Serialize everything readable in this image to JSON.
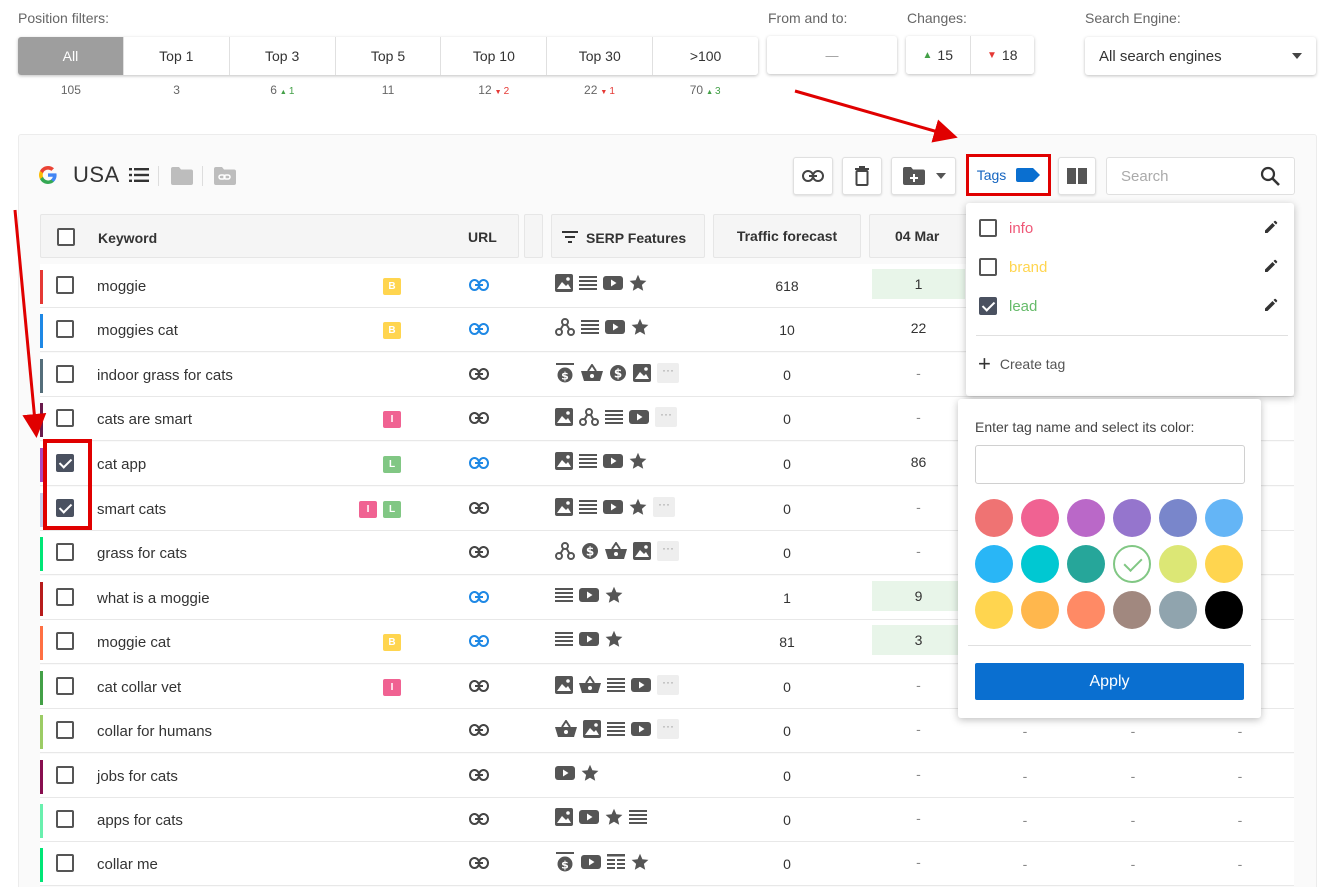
{
  "filters": {
    "position_label": "Position filters:",
    "segments": [
      {
        "label": "All",
        "count": "105",
        "delta": "",
        "dir": ""
      },
      {
        "label": "Top 1",
        "count": "3",
        "delta": "",
        "dir": ""
      },
      {
        "label": "Top 3",
        "count": "6",
        "delta": "1",
        "dir": "up"
      },
      {
        "label": "Top 5",
        "count": "11",
        "delta": "",
        "dir": ""
      },
      {
        "label": "Top 10",
        "count": "12",
        "delta": "2",
        "dir": "down"
      },
      {
        "label": "Top 30",
        "count": "22",
        "delta": "1",
        "dir": "down"
      },
      {
        "label": ">100",
        "count": "70",
        "delta": "3",
        "dir": "up"
      }
    ],
    "from_to_label": "From and to:",
    "from_to_value": "—",
    "changes_label": "Changes:",
    "changes_up": "15",
    "changes_down": "18",
    "engine_label": "Search Engine:",
    "engine_value": "All search engines"
  },
  "toolbar": {
    "country": "USA",
    "tags_label": "Tags",
    "search_placeholder": "Search"
  },
  "table": {
    "headers": {
      "keyword": "Keyword",
      "url": "URL",
      "serp": "SERP Features",
      "traffic": "Traffic forecast",
      "date": "04 Mar"
    },
    "rows": [
      {
        "keyword": "moggie",
        "bar": "#e53935",
        "checked": false,
        "badges": [
          "B"
        ],
        "url_blue": true,
        "serp": [
          "image",
          "list",
          "video",
          "star"
        ],
        "traffic": "618",
        "pos": "1",
        "pos_green": true,
        "dashes": false
      },
      {
        "keyword": "moggies cat",
        "bar": "#1e88e5",
        "checked": false,
        "badges": [
          "B"
        ],
        "url_blue": true,
        "serp": [
          "nodes",
          "list",
          "video",
          "star"
        ],
        "traffic": "10",
        "pos": "22",
        "pos_green": false,
        "dashes": false
      },
      {
        "keyword": "indoor grass for cats",
        "bar": "#546e7a",
        "checked": false,
        "badges": [],
        "url_blue": false,
        "serp": [
          "ad",
          "basket",
          "dollar",
          "image",
          "more"
        ],
        "traffic": "0",
        "pos": "-",
        "pos_green": false,
        "dashes": false
      },
      {
        "keyword": "cats are smart",
        "bar": "#6a1b4d",
        "checked": false,
        "badges": [
          "I"
        ],
        "url_blue": false,
        "serp": [
          "image",
          "nodes",
          "list",
          "video",
          "more"
        ],
        "traffic": "0",
        "pos": "-",
        "pos_green": false,
        "dashes": false
      },
      {
        "keyword": "cat app",
        "bar": "#ab47bc",
        "checked": true,
        "badges": [
          "L"
        ],
        "url_blue": true,
        "serp": [
          "image",
          "list",
          "video",
          "star"
        ],
        "traffic": "0",
        "pos": "86",
        "pos_green": false,
        "dashes": false
      },
      {
        "keyword": "smart cats",
        "bar": "#c5cae9",
        "checked": true,
        "badges": [
          "I",
          "L"
        ],
        "url_blue": false,
        "serp": [
          "image",
          "list",
          "video",
          "star",
          "more"
        ],
        "traffic": "0",
        "pos": "-",
        "pos_green": false,
        "dashes": false
      },
      {
        "keyword": "grass for cats",
        "bar": "#00e676",
        "checked": false,
        "badges": [],
        "url_blue": false,
        "serp": [
          "nodes",
          "dollar",
          "basket",
          "image",
          "more"
        ],
        "traffic": "0",
        "pos": "-",
        "pos_green": false,
        "dashes": false
      },
      {
        "keyword": "what is a moggie",
        "bar": "#b71c1c",
        "checked": false,
        "badges": [],
        "url_blue": true,
        "serp": [
          "list",
          "video",
          "star"
        ],
        "traffic": "1",
        "pos": "9",
        "pos_green": true,
        "dashes": false
      },
      {
        "keyword": "moggie cat",
        "bar": "#ff7043",
        "checked": false,
        "badges": [
          "B"
        ],
        "url_blue": true,
        "serp": [
          "list",
          "video",
          "star"
        ],
        "traffic": "81",
        "pos": "3",
        "pos_green": true,
        "dashes": false
      },
      {
        "keyword": "cat collar vet",
        "bar": "#43a047",
        "checked": false,
        "badges": [
          "I"
        ],
        "url_blue": false,
        "serp": [
          "image",
          "basket",
          "list",
          "video",
          "more"
        ],
        "traffic": "0",
        "pos": "-",
        "pos_green": false,
        "dashes": false
      },
      {
        "keyword": "collar for humans",
        "bar": "#9ccc65",
        "checked": false,
        "badges": [],
        "url_blue": false,
        "serp": [
          "basket",
          "image",
          "list",
          "video",
          "more"
        ],
        "traffic": "0",
        "pos": "-",
        "pos_green": false,
        "dashes": true
      },
      {
        "keyword": "jobs for cats",
        "bar": "#880e4f",
        "checked": false,
        "badges": [],
        "url_blue": false,
        "serp": [
          "video",
          "star"
        ],
        "traffic": "0",
        "pos": "-",
        "pos_green": false,
        "dashes": true
      },
      {
        "keyword": "apps for cats",
        "bar": "#69f0ae",
        "checked": false,
        "badges": [],
        "url_blue": false,
        "serp": [
          "image",
          "video",
          "star",
          "list"
        ],
        "traffic": "0",
        "pos": "-",
        "pos_green": false,
        "dashes": true
      },
      {
        "keyword": "collar me",
        "bar": "#00e676",
        "checked": false,
        "badges": [],
        "url_blue": false,
        "serp": [
          "ad",
          "video",
          "table",
          "star"
        ],
        "traffic": "0",
        "pos": "-",
        "pos_green": false,
        "dashes": true
      }
    ],
    "dash_value": "-"
  },
  "tag_menu": {
    "tags": [
      {
        "name": "info",
        "color": "#ef5777",
        "checked": false
      },
      {
        "name": "brand",
        "color": "#ffd54f",
        "checked": false
      },
      {
        "name": "lead",
        "color": "#66bb6a",
        "checked": true
      }
    ],
    "create_label": "Create tag"
  },
  "color_panel": {
    "label": "Enter tag name and select its color:",
    "input_value": "",
    "colors": [
      "#ef7373",
      "#f06292",
      "#ba68c8",
      "#9575cd",
      "#7986cb",
      "#64b5f6",
      "#29b6f6",
      "#00c8d2",
      "#26a69a",
      "#ffffff",
      "#dce775",
      "#ffd54f",
      "#ffd54f",
      "#ffb74d",
      "#ff8a65",
      "#a1887f",
      "#90a4ae",
      "#000000"
    ],
    "selected_index": 9,
    "apply_label": "Apply"
  },
  "colors": {
    "accent": "#0a6fd0",
    "annotation_red": "#e00000"
  }
}
